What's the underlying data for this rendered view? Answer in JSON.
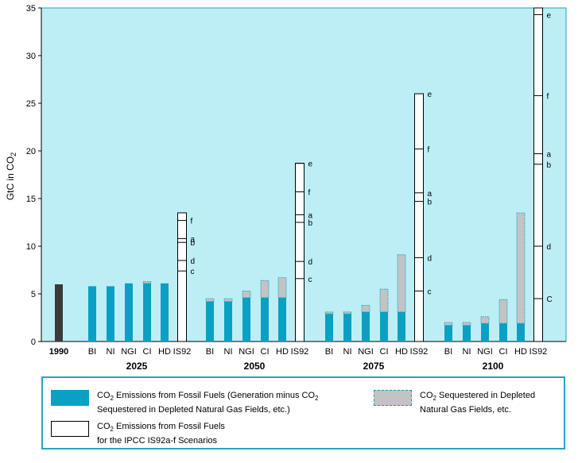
{
  "chart_data": {
    "type": "bar",
    "ylabel": "GtC in CO2",
    "ylim": [
      0,
      35
    ],
    "yticks": [
      0,
      5,
      10,
      15,
      20,
      25,
      30,
      35
    ],
    "grid": false,
    "baseline": {
      "category": "1990",
      "value": 6.0,
      "color": "#3a3a3a"
    },
    "groups": [
      {
        "year": "2025",
        "bars": [
          {
            "category": "BI",
            "emissions": 5.8,
            "sequestered": 0.0
          },
          {
            "category": "NI",
            "emissions": 5.8,
            "sequestered": 0.0
          },
          {
            "category": "NGI",
            "emissions": 6.1,
            "sequestered": 0.0
          },
          {
            "category": "CI",
            "emissions": 6.1,
            "sequestered": 0.2
          },
          {
            "category": "HD",
            "emissions": 6.1,
            "sequestered": 0.0
          }
        ],
        "is92": {
          "category": "IS92",
          "total": 13.5,
          "marks": [
            {
              "label": "f",
              "value": 12.7
            },
            {
              "label": "a",
              "value": 10.8
            },
            {
              "label": "b",
              "value": 10.4
            },
            {
              "label": "d",
              "value": 8.5
            },
            {
              "label": "c",
              "value": 7.4
            }
          ]
        }
      },
      {
        "year": "2050",
        "bars": [
          {
            "category": "BI",
            "emissions": 4.2,
            "sequestered": 0.3
          },
          {
            "category": "NI",
            "emissions": 4.2,
            "sequestered": 0.3
          },
          {
            "category": "NGI",
            "emissions": 4.6,
            "sequestered": 0.7
          },
          {
            "category": "CI",
            "emissions": 4.6,
            "sequestered": 1.8
          },
          {
            "category": "HD",
            "emissions": 4.6,
            "sequestered": 2.1
          }
        ],
        "is92": {
          "category": "IS92",
          "total": 18.7,
          "marks": [
            {
              "label": "e",
              "value": 18.7
            },
            {
              "label": "f",
              "value": 15.7
            },
            {
              "label": "a",
              "value": 13.3
            },
            {
              "label": "b",
              "value": 12.5
            },
            {
              "label": "d",
              "value": 8.4
            },
            {
              "label": "c",
              "value": 6.6
            }
          ]
        }
      },
      {
        "year": "2075",
        "bars": [
          {
            "category": "BI",
            "emissions": 2.9,
            "sequestered": 0.2
          },
          {
            "category": "NI",
            "emissions": 2.9,
            "sequestered": 0.2
          },
          {
            "category": "NGI",
            "emissions": 3.1,
            "sequestered": 0.7
          },
          {
            "category": "CI",
            "emissions": 3.1,
            "sequestered": 2.4
          },
          {
            "category": "HD",
            "emissions": 3.1,
            "sequestered": 6.0
          }
        ],
        "is92": {
          "category": "IS92",
          "total": 26.0,
          "marks": [
            {
              "label": "e",
              "value": 26.0
            },
            {
              "label": "f",
              "value": 20.2
            },
            {
              "label": "a",
              "value": 15.6
            },
            {
              "label": "b",
              "value": 14.7
            },
            {
              "label": "d",
              "value": 8.8
            },
            {
              "label": "c",
              "value": 5.3
            }
          ]
        }
      },
      {
        "year": "2100",
        "bars": [
          {
            "category": "BI",
            "emissions": 1.7,
            "sequestered": 0.3
          },
          {
            "category": "NI",
            "emissions": 1.7,
            "sequestered": 0.3
          },
          {
            "category": "NGI",
            "emissions": 1.9,
            "sequestered": 0.7
          },
          {
            "category": "CI",
            "emissions": 1.9,
            "sequestered": 2.5
          },
          {
            "category": "HD",
            "emissions": 1.9,
            "sequestered": 11.6
          }
        ],
        "is92": {
          "category": "IS92",
          "total": 35.0,
          "marks": [
            {
              "label": "e",
              "value": 34.3
            },
            {
              "label": "f",
              "value": 25.8
            },
            {
              "label": "a",
              "value": 19.7
            },
            {
              "label": "b",
              "value": 18.6
            },
            {
              "label": "d",
              "value": 10.0
            },
            {
              "label": "C",
              "value": 4.5
            }
          ]
        }
      }
    ],
    "colors": {
      "plot_bg": "#bdeef5",
      "emissions": "#0aa0c4",
      "sequestered": "#c3c3c3",
      "is92": "#ffffff",
      "frame": "#2aa3bf"
    },
    "legend": {
      "emissions": [
        "CO",
        "2",
        " Emissions from Fossil Fuels (Generation minus CO",
        "2",
        "Sequestered in Depleted Natural Gas Fields, etc.)"
      ],
      "sequestered": [
        "CO",
        "2",
        " Sequestered in Depleted",
        "Natural Gas Fields, etc."
      ],
      "is92": [
        "CO",
        "2",
        " Emissions from Fossil Fuels",
        "for the IPCC IS92a-f Scenarios"
      ]
    }
  }
}
